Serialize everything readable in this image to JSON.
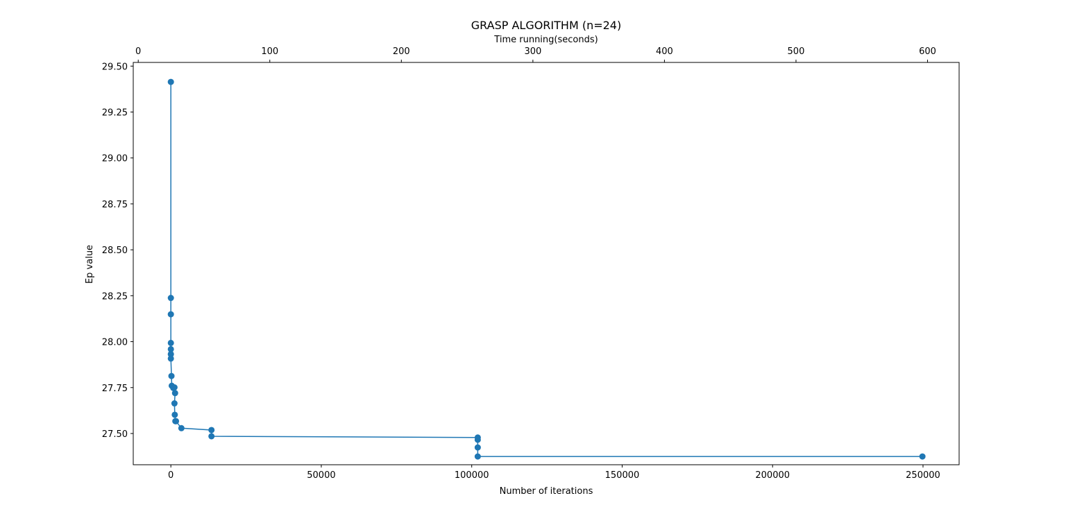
{
  "chart_data": {
    "type": "line",
    "title": "GRASP ALGORITHM (n=24)",
    "xlabel": "Number of iterations",
    "ylabel": "Ep value",
    "x2label": "Time running(seconds)",
    "xlim": [
      -12500,
      262000
    ],
    "ylim": [
      27.33,
      29.52
    ],
    "x2lim": [
      -3.8,
      624
    ],
    "xticks": [
      0,
      50000,
      100000,
      150000,
      200000,
      250000
    ],
    "xtick_labels": [
      "0",
      "50000",
      "100000",
      "150000",
      "200000",
      "250000"
    ],
    "yticks": [
      27.5,
      27.75,
      28.0,
      28.25,
      28.5,
      28.75,
      29.0,
      29.25,
      29.5
    ],
    "ytick_labels": [
      "27.50",
      "27.75",
      "28.00",
      "28.25",
      "28.50",
      "28.75",
      "29.00",
      "29.25",
      "29.50"
    ],
    "x2ticks": [
      0,
      100,
      200,
      300,
      400,
      500,
      600
    ],
    "x2tick_labels": [
      "0",
      "100",
      "200",
      "300",
      "400",
      "500",
      "600"
    ],
    "grid": false,
    "color": "#1f77b4",
    "series": [
      {
        "marker": "circle",
        "x": [
          0,
          0,
          0,
          0,
          0,
          0,
          0,
          200,
          300,
          800,
          1200,
          1400,
          1200,
          1300,
          1500,
          1700,
          3500,
          13500,
          13500,
          102000,
          102000,
          102000,
          102000,
          249800
        ],
        "y": [
          29.414,
          28.238,
          28.149,
          27.993,
          27.959,
          27.932,
          27.908,
          27.813,
          27.76,
          27.748,
          27.751,
          27.72,
          27.664,
          27.602,
          27.567,
          27.567,
          27.529,
          27.519,
          27.485,
          27.478,
          27.466,
          27.424,
          27.375,
          27.375
        ]
      }
    ]
  }
}
